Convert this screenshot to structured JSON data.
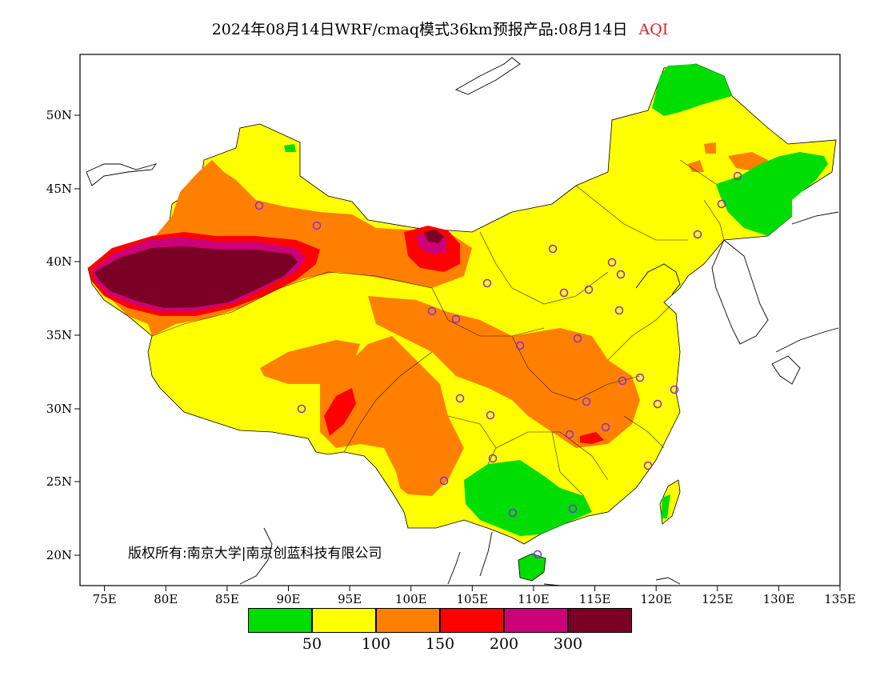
{
  "header": {
    "title": "2024年08月14日WRF/cmaq模式36km预报产品:08月14日",
    "variable": "AQI"
  },
  "map": {
    "lon_labels": [
      "75E",
      "80E",
      "85E",
      "90E",
      "95E",
      "100E",
      "105E",
      "110E",
      "115E",
      "120E",
      "125E",
      "130E",
      "135E"
    ],
    "lat_labels": [
      "50N",
      "45N",
      "40N",
      "35N",
      "30N",
      "25N",
      "20N"
    ],
    "lon_range": [
      73,
      135
    ],
    "lat_range": [
      18,
      54
    ],
    "copyright": "版权所有:南京大学|南京创蓝科技有限公司",
    "station_marker_color": "#8a2be2"
  },
  "legend": {
    "labels": [
      "50",
      "100",
      "150",
      "200",
      "300"
    ],
    "colors": [
      "#00dd00",
      "#ffff00",
      "#ff8000",
      "#ff0000",
      "#cc0077",
      "#7a0026"
    ]
  }
}
